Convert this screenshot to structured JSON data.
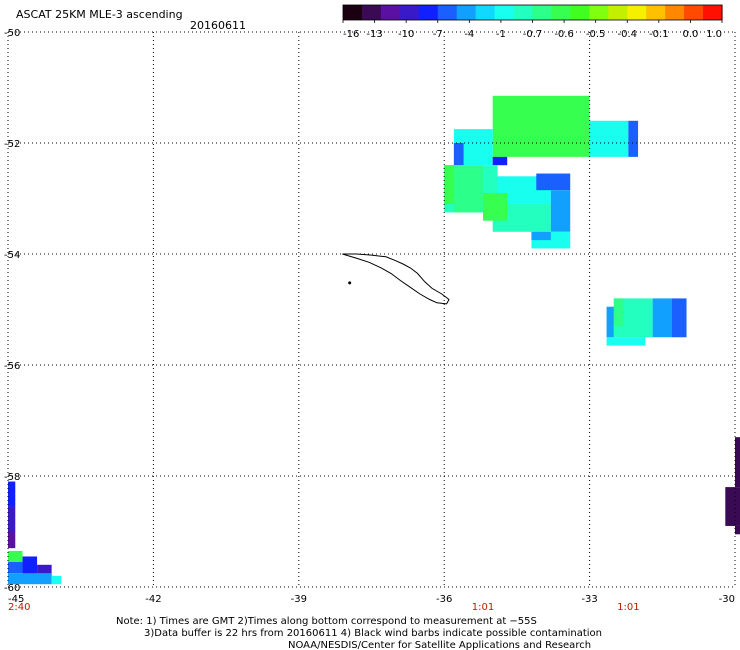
{
  "header": {
    "title": "ASCAT 25KM MLE-3 ascending",
    "date": "20160611"
  },
  "colorbar": {
    "colors": [
      "#1a0010",
      "#3a0a55",
      "#5a10a0",
      "#3a1ac8",
      "#1020ff",
      "#1a60ff",
      "#12a0ff",
      "#10d8ff",
      "#18fff0",
      "#22ffbe",
      "#2cff8a",
      "#36ff50",
      "#40ff20",
      "#80ff10",
      "#c4f000",
      "#f4f000",
      "#ffc000",
      "#ff8800",
      "#ff4a00",
      "#ff1000"
    ],
    "tick_labels": [
      "-16",
      "-13",
      "-10",
      "-7",
      "-4",
      "-1",
      "-0.7",
      "-0.6",
      "-0.5",
      "-0.4",
      "-0.1",
      "0.0",
      "1.0"
    ]
  },
  "axes": {
    "lat_labels": [
      "-50",
      "-52",
      "-54",
      "-56",
      "-58",
      "-60"
    ],
    "lon_labels": [
      "-45",
      "-42",
      "-39",
      "-36",
      "-33",
      "-30"
    ],
    "lat_range": [
      -60,
      -50
    ],
    "lon_range": [
      -45,
      -30
    ]
  },
  "time_labels": [
    {
      "text": "2:40",
      "lon": -45
    },
    {
      "text": "1:01",
      "lon": -35.2
    },
    {
      "text": "1:01",
      "lon": -32.2
    }
  ],
  "cells": [
    {
      "lon0": -35.0,
      "lat0": -52.25,
      "lon1": -33.0,
      "lat1": -51.15,
      "color": "#36ff50"
    },
    {
      "lon0": -33.0,
      "lat0": -52.25,
      "lon1": -32.2,
      "lat1": -51.6,
      "color": "#18fff0"
    },
    {
      "lon0": -32.2,
      "lat0": -52.25,
      "lon1": -32.0,
      "lat1": -51.6,
      "color": "#1a60ff"
    },
    {
      "lon0": -35.8,
      "lat0": -52.4,
      "lon1": -35.0,
      "lat1": -51.75,
      "color": "#18fff0"
    },
    {
      "lon0": -35.8,
      "lat0": -52.4,
      "lon1": -35.6,
      "lat1": -52.0,
      "color": "#1a60ff"
    },
    {
      "lon0": -35.0,
      "lat0": -52.4,
      "lon1": -34.7,
      "lat1": -52.25,
      "color": "#1020ff"
    },
    {
      "lon0": -36.0,
      "lat0": -53.25,
      "lon1": -34.9,
      "lat1": -52.4,
      "color": "#22ffbe"
    },
    {
      "lon0": -35.8,
      "lat0": -53.25,
      "lon1": -35.2,
      "lat1": -52.4,
      "color": "#2cff8a"
    },
    {
      "lon0": -36.0,
      "lat0": -53.1,
      "lon1": -35.8,
      "lat1": -52.4,
      "color": "#36ff50"
    },
    {
      "lon0": -35.0,
      "lat0": -53.6,
      "lon1": -33.8,
      "lat1": -53.1,
      "color": "#22ffbe"
    },
    {
      "lon0": -34.9,
      "lat0": -53.1,
      "lon1": -33.8,
      "lat1": -52.6,
      "color": "#18fff0"
    },
    {
      "lon0": -35.2,
      "lat0": -53.4,
      "lon1": -34.7,
      "lat1": -52.9,
      "color": "#36ff50"
    },
    {
      "lon0": -34.1,
      "lat0": -52.85,
      "lon1": -33.4,
      "lat1": -52.55,
      "color": "#1a60ff"
    },
    {
      "lon0": -33.8,
      "lat0": -53.6,
      "lon1": -33.4,
      "lat1": -52.85,
      "color": "#12a0ff"
    },
    {
      "lon0": -34.2,
      "lat0": -53.9,
      "lon1": -33.4,
      "lat1": -53.6,
      "color": "#18fff0"
    },
    {
      "lon0": -34.2,
      "lat0": -53.75,
      "lon1": -33.8,
      "lat1": -53.6,
      "color": "#12a0ff"
    },
    {
      "lon0": -32.5,
      "lat0": -55.5,
      "lon1": -31.7,
      "lat1": -54.8,
      "color": "#22ffbe"
    },
    {
      "lon0": -32.5,
      "lat0": -55.3,
      "lon1": -32.3,
      "lat1": -54.8,
      "color": "#2cff8a"
    },
    {
      "lon0": -31.7,
      "lat0": -55.5,
      "lon1": -31.3,
      "lat1": -54.8,
      "color": "#12a0ff"
    },
    {
      "lon0": -31.3,
      "lat0": -55.5,
      "lon1": -31.0,
      "lat1": -54.8,
      "color": "#1a60ff"
    },
    {
      "lon0": -32.65,
      "lat0": -55.65,
      "lon1": -31.85,
      "lat1": -55.5,
      "color": "#18fff0"
    },
    {
      "lon0": -32.65,
      "lat0": -55.5,
      "lon1": -32.5,
      "lat1": -54.95,
      "color": "#12a0ff"
    },
    {
      "lon0": -30.0,
      "lat0": -58.2,
      "lon1": -29.8,
      "lat1": -57.3,
      "color": "#3a0a55"
    },
    {
      "lon0": -30.2,
      "lat0": -58.9,
      "lon1": -29.8,
      "lat1": -58.2,
      "color": "#3a0a55"
    },
    {
      "lon0": -30.0,
      "lat0": -59.05,
      "lon1": -29.8,
      "lat1": -58.9,
      "color": "#3a0a55"
    },
    {
      "lon0": -45.0,
      "lat0": -58.55,
      "lon1": -44.85,
      "lat1": -58.1,
      "color": "#1020ff"
    },
    {
      "lon0": -45.0,
      "lat0": -59.0,
      "lon1": -44.85,
      "lat1": -58.55,
      "color": "#3a1ac8"
    },
    {
      "lon0": -45.0,
      "lat0": -59.3,
      "lon1": -44.85,
      "lat1": -59.0,
      "color": "#5a10a0"
    },
    {
      "lon0": -45.0,
      "lat0": -59.55,
      "lon1": -44.7,
      "lat1": -59.35,
      "color": "#36ff50"
    },
    {
      "lon0": -45.0,
      "lat0": -59.75,
      "lon1": -44.7,
      "lat1": -59.55,
      "color": "#1a60ff"
    },
    {
      "lon0": -44.7,
      "lat0": -59.8,
      "lon1": -44.4,
      "lat1": -59.45,
      "color": "#1020ff"
    },
    {
      "lon0": -44.4,
      "lat0": -59.8,
      "lon1": -44.1,
      "lat1": -59.6,
      "color": "#3a1ac8"
    },
    {
      "lon0": -45.0,
      "lat0": -59.95,
      "lon1": -44.1,
      "lat1": -59.75,
      "color": "#12a0ff"
    },
    {
      "lon0": -44.1,
      "lat0": -59.95,
      "lon1": -43.9,
      "lat1": -59.8,
      "color": "#18fff0"
    }
  ],
  "island": [
    [
      -38.1,
      -54.0
    ],
    [
      -37.8,
      -54.0
    ],
    [
      -37.5,
      -54.02
    ],
    [
      -37.2,
      -54.05
    ],
    [
      -37.0,
      -54.12
    ],
    [
      -36.85,
      -54.18
    ],
    [
      -36.7,
      -54.25
    ],
    [
      -36.55,
      -54.35
    ],
    [
      -36.4,
      -54.5
    ],
    [
      -36.25,
      -54.62
    ],
    [
      -36.05,
      -54.72
    ],
    [
      -35.9,
      -54.82
    ],
    [
      -35.95,
      -54.9
    ],
    [
      -36.15,
      -54.88
    ],
    [
      -36.3,
      -54.82
    ],
    [
      -36.5,
      -54.72
    ],
    [
      -36.7,
      -54.6
    ],
    [
      -36.9,
      -54.48
    ],
    [
      -37.1,
      -54.35
    ],
    [
      -37.3,
      -54.25
    ],
    [
      -37.55,
      -54.15
    ],
    [
      -37.8,
      -54.08
    ],
    [
      -38.1,
      -54.0
    ]
  ],
  "notes": {
    "line1": "Note: 1) Times are GMT 2)Times along bottom correspond to measurement at −55S",
    "line2": "3)Data buffer is 22 hrs from 20160611 4) Black wind barbs indicate possible contamination",
    "line3": "NOAA/NESDIS/Center for Satellite Applications and Research"
  }
}
